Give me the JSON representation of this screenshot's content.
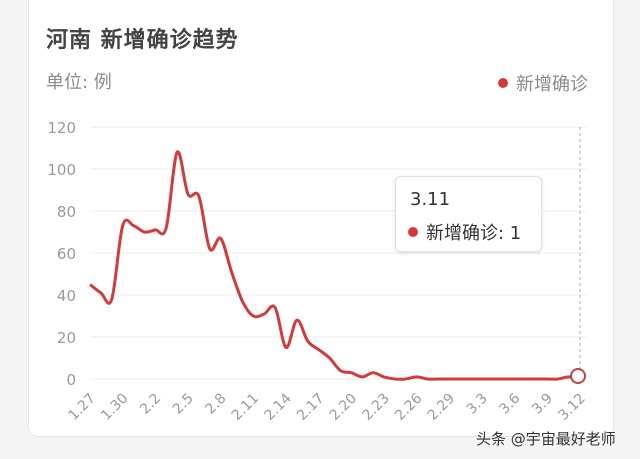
{
  "header": {
    "title": "河南 新增确诊趋势",
    "unit_label": "单位: 例",
    "legend_label": "新增确诊"
  },
  "tooltip": {
    "date": "3.11",
    "label": "新增确诊: 1"
  },
  "watermark": "头条 @宇宙最好老师",
  "colors": {
    "series": "#d23b3b",
    "grid": "#eeeeee",
    "axis_text": "#9a9a9a"
  },
  "chart_data": {
    "type": "line",
    "title": "河南 新增确诊趋势",
    "ylabel": "单位: 例",
    "ylim": [
      0,
      120
    ],
    "yticks": [
      "0",
      "20",
      "40",
      "60",
      "80",
      "100",
      "120"
    ],
    "xticks": [
      "1.27",
      "1.30",
      "2.2",
      "2.5",
      "2.8",
      "2.11",
      "2.14",
      "2.17",
      "2.20",
      "2.23",
      "2.26",
      "2.29",
      "3.3",
      "3.6",
      "3.9",
      "3.12"
    ],
    "grid": true,
    "legend": "top-right",
    "series": [
      {
        "name": "新增确诊",
        "x": [
          "1.27",
          "1.28",
          "1.29",
          "1.30",
          "1.31",
          "2.1",
          "2.2",
          "2.3",
          "2.4",
          "2.5",
          "2.6",
          "2.7",
          "2.8",
          "2.9",
          "2.10",
          "2.11",
          "2.12",
          "2.13",
          "2.14",
          "2.15",
          "2.16",
          "2.17",
          "2.18",
          "2.19",
          "2.20",
          "2.21",
          "2.22",
          "2.23",
          "2.24",
          "2.25",
          "2.26",
          "2.27",
          "2.28",
          "2.29",
          "3.1",
          "3.2",
          "3.3",
          "3.4",
          "3.5",
          "3.6",
          "3.7",
          "3.8",
          "3.9",
          "3.10",
          "3.11",
          "3.12"
        ],
        "values": [
          45,
          41,
          38,
          73,
          73,
          70,
          71,
          72,
          108,
          88,
          87,
          62,
          67,
          51,
          37,
          30,
          31,
          34,
          15,
          28,
          18,
          14,
          10,
          4,
          3,
          1,
          3,
          1,
          0,
          0,
          1,
          0,
          0,
          0,
          0,
          0,
          0,
          0,
          0,
          0,
          0,
          0,
          0,
          0,
          1,
          0
        ]
      }
    ]
  }
}
